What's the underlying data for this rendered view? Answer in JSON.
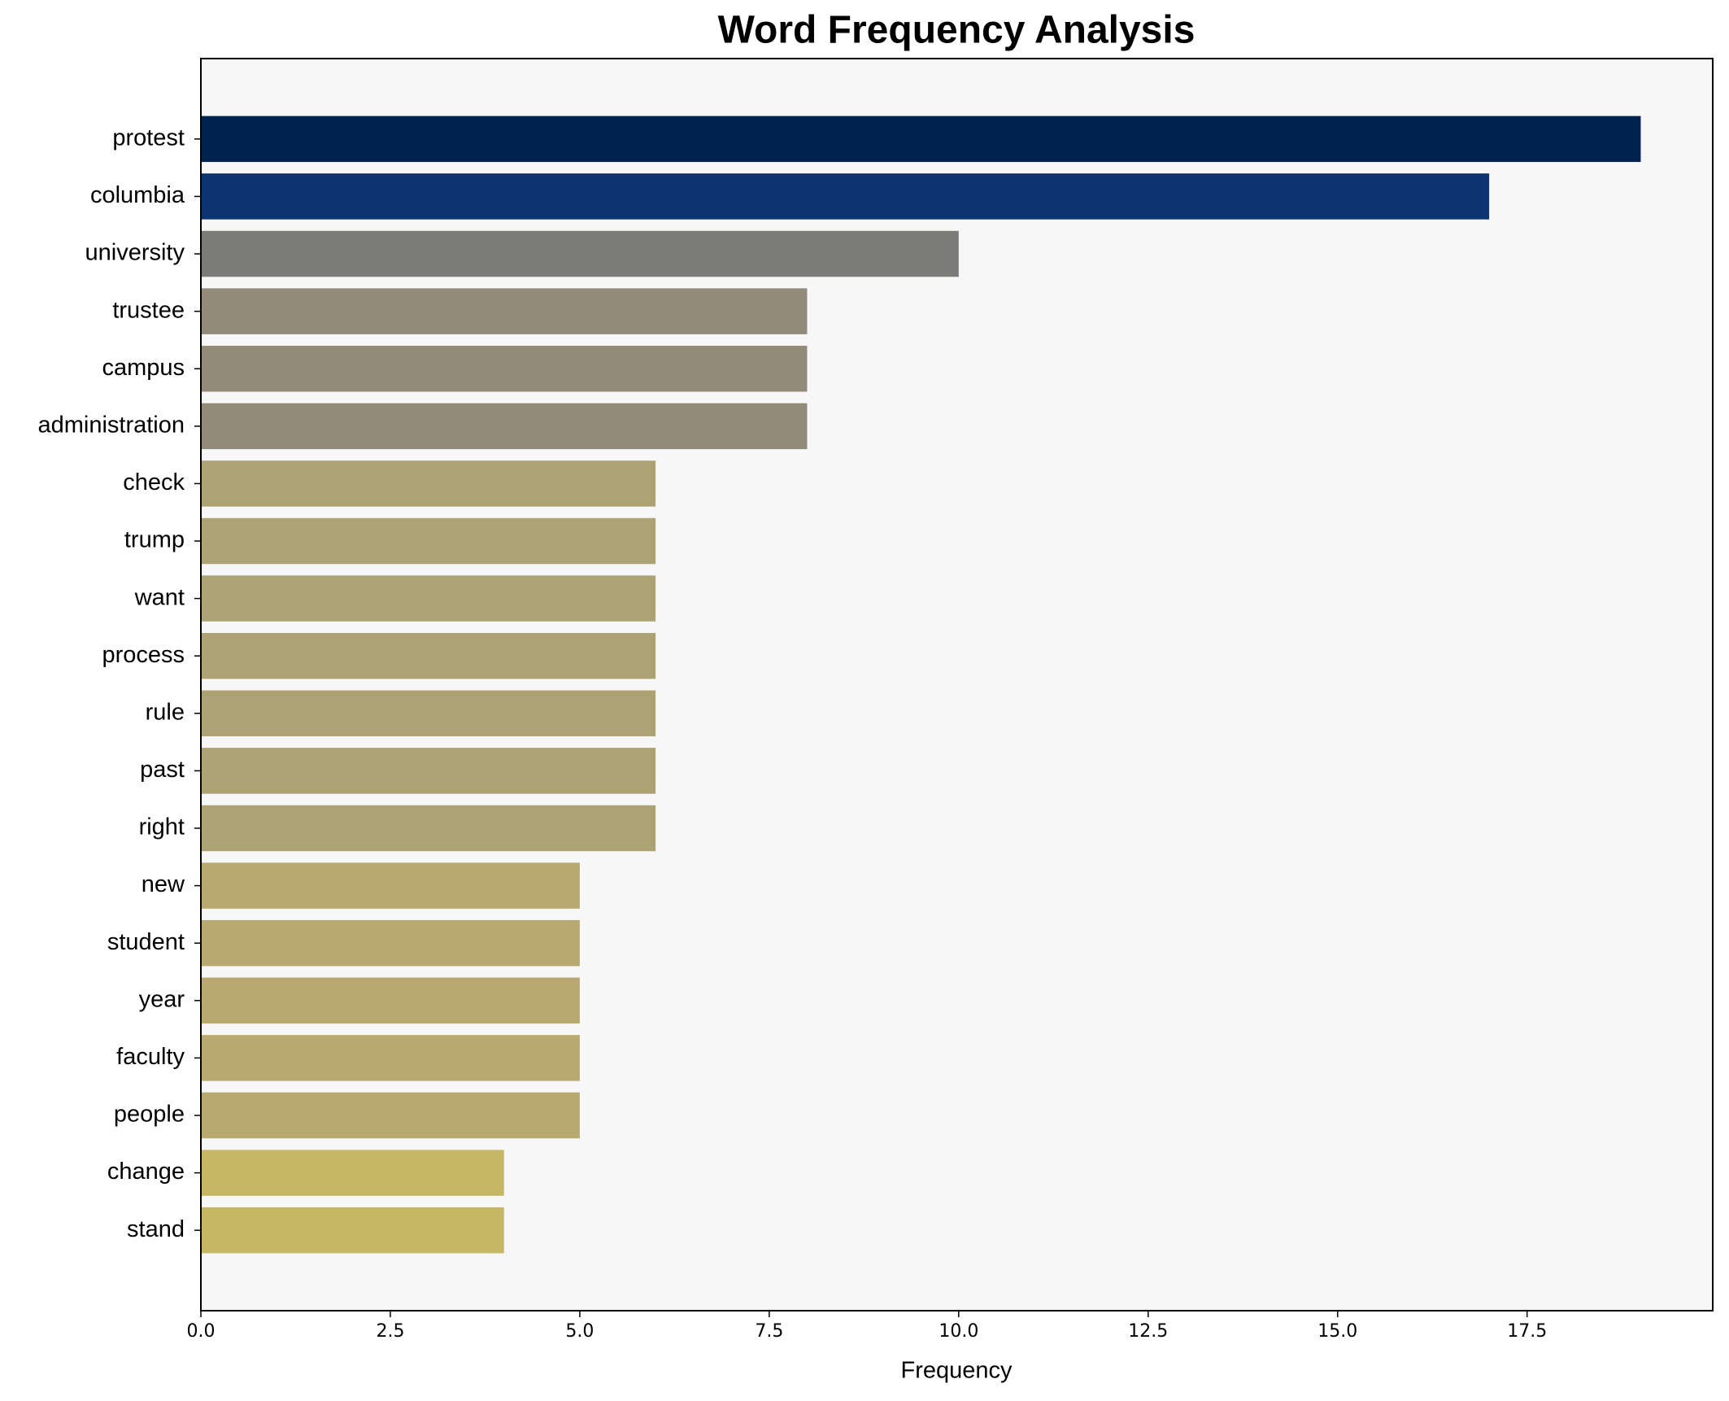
{
  "chart_data": {
    "type": "bar",
    "orientation": "horizontal",
    "title": "Word Frequency Analysis",
    "xlabel": "Frequency",
    "categories": [
      "protest",
      "columbia",
      "university",
      "trustee",
      "campus",
      "administration",
      "check",
      "trump",
      "want",
      "process",
      "rule",
      "past",
      "right",
      "new",
      "student",
      "year",
      "faculty",
      "people",
      "change",
      "stand"
    ],
    "values": [
      19,
      17,
      10,
      8,
      8,
      8,
      6,
      6,
      6,
      6,
      6,
      6,
      6,
      5,
      5,
      5,
      5,
      5,
      4,
      4
    ],
    "colors": [
      "#00224e",
      "#0d3370",
      "#7b7b78",
      "#918b78",
      "#918b78",
      "#918b78",
      "#aca274",
      "#aca274",
      "#aca274",
      "#aca274",
      "#aca274",
      "#aca274",
      "#aca274",
      "#b8a970",
      "#b8a970",
      "#b8a970",
      "#b8a970",
      "#b8a970",
      "#c6b767",
      "#c6b767"
    ],
    "xlim": [
      0,
      19.95
    ],
    "xticks": [
      {
        "value": 0,
        "label": "0.0"
      },
      2.5,
      {
        "value": 5,
        "label": "5.0"
      },
      7.5,
      {
        "value": 10,
        "label": "10.0"
      },
      12.5,
      {
        "value": 15,
        "label": "15.0"
      },
      17.5
    ],
    "grid": false
  }
}
